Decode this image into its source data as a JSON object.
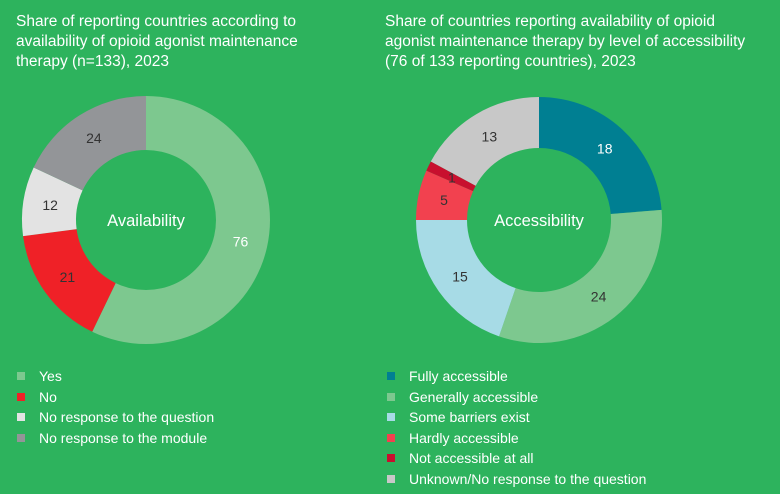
{
  "colors": {
    "background": "#2db35d",
    "yes": "#7dc88f",
    "no": "#ef2127",
    "no_response_question": "#e3e3e3",
    "no_response_module": "#939598",
    "fully_accessible": "#007f92",
    "generally_accessible": "#7dc88f",
    "some_barriers": "#a7dbe6",
    "hardly_accessible": "#f2414f",
    "not_accessible": "#c8102e",
    "unknown": "#c8c8c8"
  },
  "chart_data": [
    {
      "type": "pie",
      "title_lines": [
        "Share of reporting countries according to",
        "availability of opioid agonist maintenance",
        "therapy (n=133), 2023"
      ],
      "center_label": "Availability",
      "series": [
        {
          "name": "Yes",
          "value": 76,
          "label": "76",
          "color": "#7dc88f"
        },
        {
          "name": "No",
          "value": 21,
          "label": "21",
          "color": "#ef2127"
        },
        {
          "name": "No response to the question",
          "value": 12,
          "label": "12",
          "color": "#e3e3e3"
        },
        {
          "name": "No response to the module",
          "value": 24,
          "label": "24",
          "color": "#939598"
        }
      ],
      "legend_position": "bottom-left"
    },
    {
      "type": "pie",
      "title_lines": [
        "Share of countries reporting availability of opioid",
        "agonist maintenance therapy by level of accessibility",
        "(76 of 133 reporting countries), 2023"
      ],
      "center_label": "Accessibility",
      "series": [
        {
          "name": "Fully accessible",
          "value": 18,
          "label": "18",
          "color": "#007f92"
        },
        {
          "name": "Generally accessible",
          "value": 24,
          "label": "24",
          "color": "#7dc88f"
        },
        {
          "name": "Some barriers exist",
          "value": 15,
          "label": "15",
          "color": "#a7dbe6"
        },
        {
          "name": "Hardly accessible",
          "value": 5,
          "label": "5",
          "color": "#f2414f"
        },
        {
          "name": "Not accessible at all",
          "value": 1,
          "label": "1",
          "color": "#c8102e"
        },
        {
          "name": "Unknown/No response to the question",
          "value": 13,
          "label": "13",
          "color": "#c8c8c8"
        }
      ],
      "legend_position": "bottom-left"
    }
  ]
}
